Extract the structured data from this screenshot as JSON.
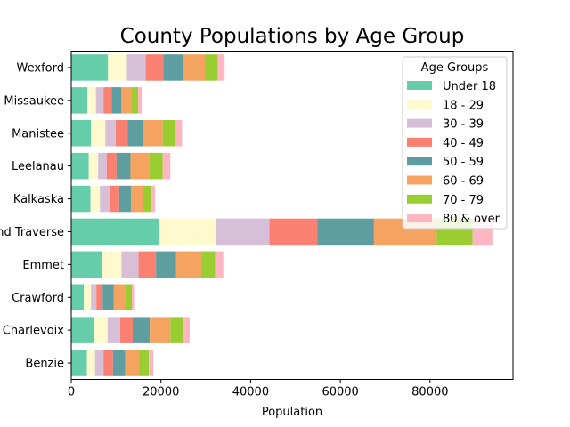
{
  "chart_data": {
    "type": "bar",
    "orientation": "horizontal",
    "stacked": true,
    "title": "County Populations by Age Group",
    "xlabel": "Population",
    "ylabel": "",
    "xlim": [
      0,
      98500
    ],
    "xticks": [
      0,
      20000,
      40000,
      60000,
      80000
    ],
    "xtick_labels": [
      "0",
      "20000",
      "40000",
      "60000",
      "80000"
    ],
    "grid": false,
    "legend": {
      "title": "Age Groups",
      "placement": "top-right"
    },
    "categories": [
      "Benzie",
      "Charlevoix",
      "Crawford",
      "Emmet",
      "Grand Traverse",
      "Kalkaska",
      "Leelanau",
      "Manistee",
      "Missaukee",
      "Wexford"
    ],
    "series": [
      {
        "name": "Under 18",
        "color": "#66cdaa",
        "values": [
          3500,
          5000,
          2800,
          6800,
          19500,
          4300,
          3900,
          4400,
          3600,
          8200
        ]
      },
      {
        "name": "18 - 29",
        "color": "#fffacd",
        "values": [
          1800,
          3100,
          1600,
          4400,
          12700,
          2100,
          2100,
          3200,
          1900,
          4200
        ]
      },
      {
        "name": "30 - 39",
        "color": "#d8bfd8",
        "values": [
          1900,
          2800,
          1200,
          3800,
          12000,
          2200,
          1900,
          2300,
          1700,
          4200
        ]
      },
      {
        "name": "40 - 49",
        "color": "#fa8072",
        "values": [
          2100,
          2800,
          1400,
          3900,
          10700,
          2100,
          2200,
          2700,
          1800,
          3900
        ]
      },
      {
        "name": "50 - 59",
        "color": "#5f9ea0",
        "values": [
          2700,
          3800,
          2500,
          4500,
          12600,
          2600,
          3100,
          3400,
          2200,
          4500
        ]
      },
      {
        "name": "60 - 69",
        "color": "#f4a460",
        "values": [
          3100,
          4600,
          2500,
          5600,
          14000,
          2700,
          4200,
          4400,
          2300,
          4800
        ]
      },
      {
        "name": "70 - 79",
        "color": "#9acd32",
        "values": [
          2200,
          2900,
          1500,
          3100,
          8000,
          1800,
          3000,
          2900,
          1400,
          2900
        ]
      },
      {
        "name": "80 & over",
        "color": "#ffb6c1",
        "values": [
          1000,
          1400,
          700,
          1800,
          4400,
          900,
          1700,
          1400,
          800,
          1500
        ]
      }
    ]
  }
}
